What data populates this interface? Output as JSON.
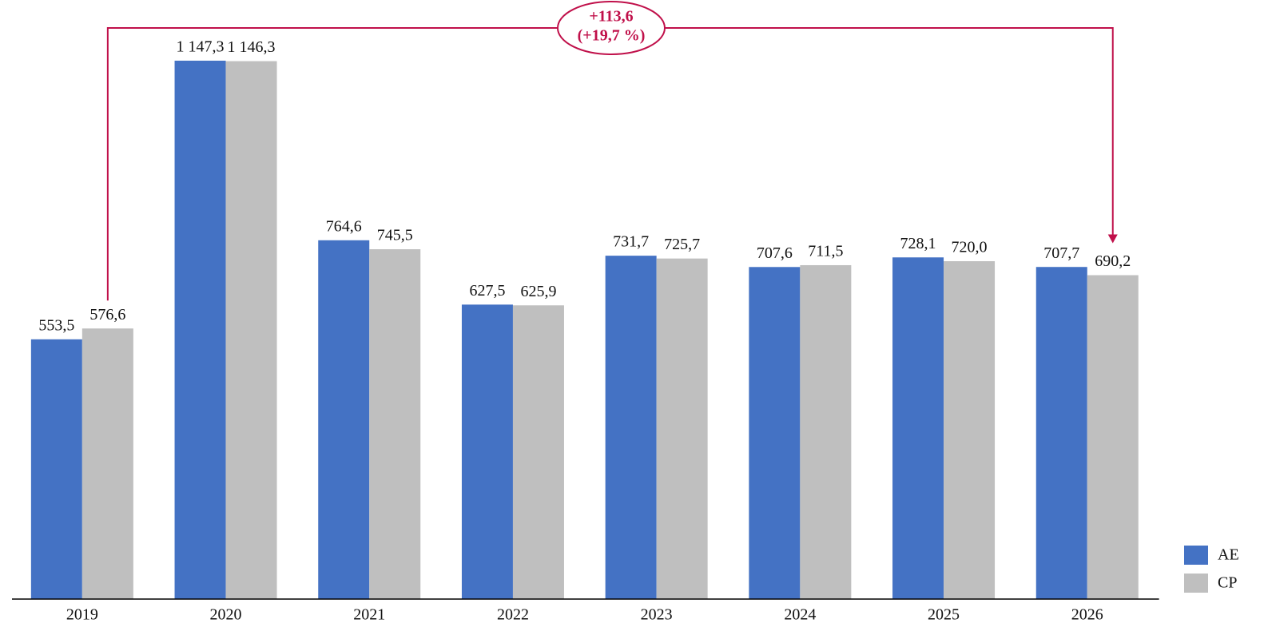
{
  "chart_data": {
    "type": "bar",
    "categories": [
      "2019",
      "2020",
      "2021",
      "2022",
      "2023",
      "2024",
      "2025",
      "2026"
    ],
    "series": [
      {
        "name": "AE",
        "color": "#4472c4",
        "values": [
          553.5,
          1147.3,
          764.6,
          627.5,
          731.7,
          707.6,
          728.1,
          707.7
        ],
        "value_labels": [
          "553,5",
          "1 147,3",
          "764,6",
          "627,5",
          "731,7",
          "707,6",
          "728,1",
          "707,7"
        ]
      },
      {
        "name": "CP",
        "color": "#bfbfbf",
        "values": [
          576.6,
          1146.3,
          745.5,
          625.9,
          725.7,
          711.5,
          720.0,
          690.2
        ],
        "value_labels": [
          "576,6",
          "1 146,3",
          "745,5",
          "625,9",
          "725,7",
          "711,5",
          "720,0",
          "690,2"
        ]
      }
    ],
    "ylim": [
      0,
      1200
    ],
    "legend": "bottom-right",
    "annotation": {
      "lines": [
        "+113,6",
        "(+19,7 %)"
      ],
      "color": "#c0104a"
    }
  }
}
